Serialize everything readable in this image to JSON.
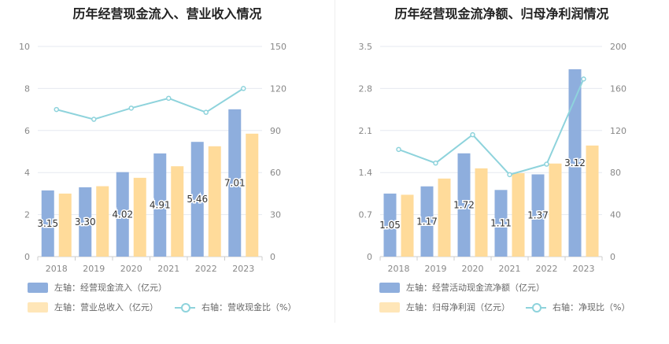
{
  "chart_data": [
    {
      "type": "bar",
      "title": "历年经营现金流入、营业收入情况",
      "categories": [
        "2018",
        "2019",
        "2020",
        "2021",
        "2022",
        "2023"
      ],
      "left_axis": {
        "min": 0,
        "max": 10,
        "ticks": [
          "0",
          "2",
          "4",
          "6",
          "8",
          "10"
        ]
      },
      "right_axis": {
        "min": 0,
        "max": 150,
        "ticks": [
          "0",
          "30",
          "60",
          "90",
          "120",
          "150"
        ]
      },
      "grid": true,
      "legend_position": "bottom-left",
      "series": [
        {
          "name": "左轴：经营现金流入（亿元）",
          "axis": "left",
          "type": "bar",
          "color": "#8eaedd",
          "values": [
            3.15,
            3.3,
            4.02,
            4.91,
            5.46,
            7.01
          ],
          "labels": [
            "3.15",
            "3.30",
            "4.02",
            "4.91",
            "5.46",
            "7.01"
          ]
        },
        {
          "name": "左轴：营业总收入（亿元）",
          "axis": "left",
          "type": "bar",
          "color": "#ffdb9a",
          "values": [
            3.0,
            3.35,
            3.75,
            4.3,
            5.25,
            5.85
          ]
        },
        {
          "name": "右轴：营收现金比（%）",
          "axis": "right",
          "type": "line",
          "color": "#8ed3dc",
          "values": [
            105,
            98,
            106,
            113,
            103,
            120
          ]
        }
      ]
    },
    {
      "type": "bar",
      "title": "历年经营现金流净额、归母净利润情况",
      "categories": [
        "2018",
        "2019",
        "2020",
        "2021",
        "2022",
        "2023"
      ],
      "left_axis": {
        "min": 0,
        "max": 3.5,
        "ticks": [
          "0",
          "0.7",
          "1.4",
          "2.1",
          "2.8",
          "3.5"
        ]
      },
      "right_axis": {
        "min": 0,
        "max": 200,
        "ticks": [
          "0",
          "40",
          "80",
          "120",
          "160",
          "200"
        ]
      },
      "grid": true,
      "legend_position": "bottom-left",
      "series": [
        {
          "name": "左轴：经营活动现金流净额（亿元）",
          "axis": "left",
          "type": "bar",
          "color": "#8eaedd",
          "values": [
            1.05,
            1.17,
            1.72,
            1.11,
            1.37,
            3.12
          ],
          "labels": [
            "1.05",
            "1.17",
            "1.72",
            "1.11",
            "1.37",
            "3.12"
          ]
        },
        {
          "name": "左轴：归母净利润（亿元）",
          "axis": "left",
          "type": "bar",
          "color": "#ffdb9a",
          "values": [
            1.03,
            1.3,
            1.47,
            1.39,
            1.55,
            1.85
          ]
        },
        {
          "name": "右轴：净现比（%）",
          "axis": "right",
          "type": "line",
          "color": "#8ed3dc",
          "values": [
            102,
            89,
            116,
            78,
            88,
            169
          ]
        }
      ]
    }
  ]
}
